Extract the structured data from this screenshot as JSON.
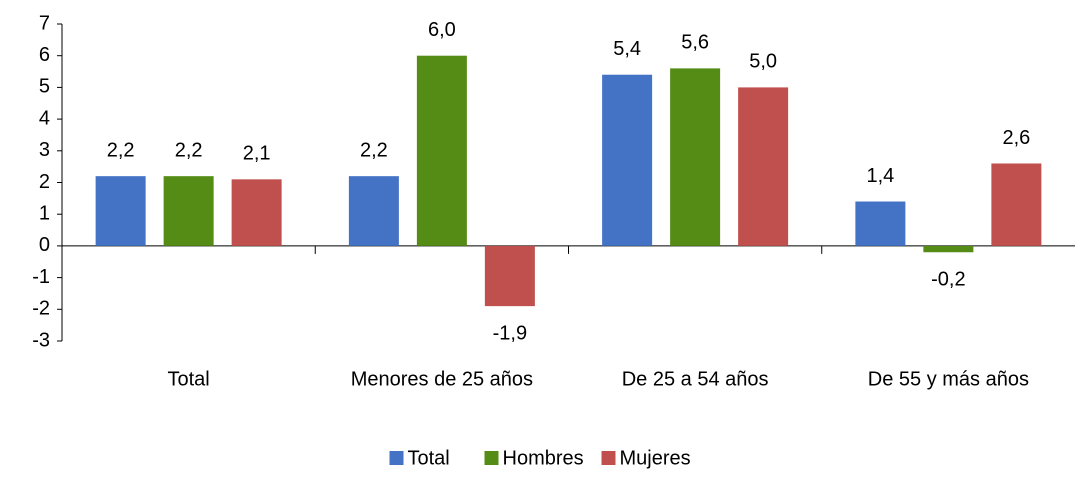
{
  "chart_data": {
    "type": "bar",
    "categories": [
      "Total",
      "Menores de 25 años",
      "De 25 a 54 años",
      "De 55 y más años"
    ],
    "series": [
      {
        "name": "Total",
        "color": "#4472c4",
        "values": [
          2.2,
          2.2,
          5.4,
          1.4
        ],
        "value_labels": [
          "2,2",
          "2,2",
          "5,4",
          "1,4"
        ]
      },
      {
        "name": "Hombres",
        "color": "#548c16",
        "values": [
          2.2,
          6.0,
          5.6,
          -0.2
        ],
        "value_labels": [
          "2,2",
          "6,0",
          "5,6",
          "-0,2"
        ]
      },
      {
        "name": "Mujeres",
        "color": "#c0504d",
        "values": [
          2.1,
          -1.9,
          5.0,
          2.6
        ],
        "value_labels": [
          "2,1",
          "-1,9",
          "5,0",
          "2,6"
        ]
      }
    ],
    "ylim": [
      -3,
      7
    ],
    "yticks": [
      -3,
      -2,
      -1,
      0,
      1,
      2,
      3,
      4,
      5,
      6,
      7
    ],
    "legend": "bottom"
  }
}
